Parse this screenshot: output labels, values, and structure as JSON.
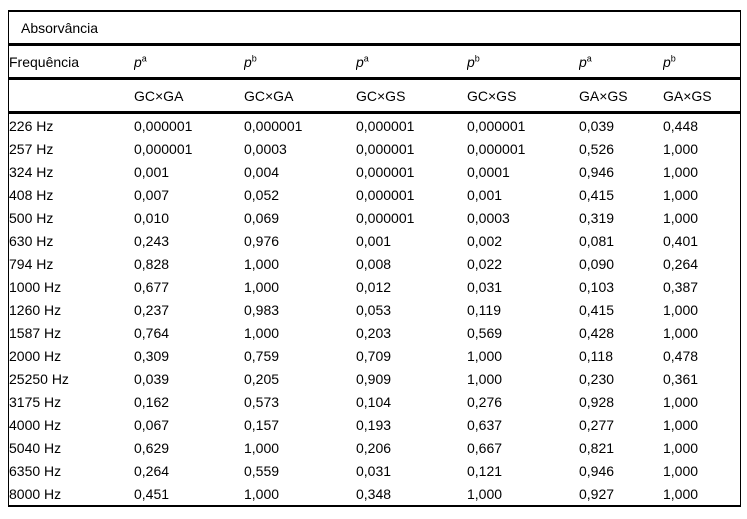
{
  "page": {
    "background": "#ffffff"
  },
  "table": {
    "title": "Absorvância",
    "frequency_header": "Frequência",
    "p_base": "p",
    "p_superscripts": [
      "a",
      "b",
      "a",
      "b",
      "a",
      "b"
    ],
    "group_labels": [
      "GC×GA",
      "GC×GA",
      "GC×GS",
      "GC×GS",
      "GA×GS",
      "GA×GS"
    ],
    "rows": [
      {
        "freq": "226 Hz",
        "values": [
          "0,000001",
          "0,000001",
          "0,000001",
          "0,000001",
          "0,039",
          "0,448"
        ]
      },
      {
        "freq": "257 Hz",
        "values": [
          "0,000001",
          "0,0003",
          "0,000001",
          "0,000001",
          "0,526",
          "1,000"
        ]
      },
      {
        "freq": "324 Hz",
        "values": [
          "0,001",
          "0,004",
          "0,000001",
          "0,0001",
          "0,946",
          "1,000"
        ]
      },
      {
        "freq": "408 Hz",
        "values": [
          "0,007",
          "0,052",
          "0,000001",
          "0,001",
          "0,415",
          "1,000"
        ]
      },
      {
        "freq": "500 Hz",
        "values": [
          "0,010",
          "0,069",
          "0,000001",
          "0,0003",
          "0,319",
          "1,000"
        ]
      },
      {
        "freq": "630 Hz",
        "values": [
          "0,243",
          "0,976",
          "0,001",
          "0,002",
          "0,081",
          "0,401"
        ]
      },
      {
        "freq": "794 Hz",
        "values": [
          "0,828",
          "1,000",
          "0,008",
          "0,022",
          "0,090",
          "0,264"
        ]
      },
      {
        "freq": "1000 Hz",
        "values": [
          "0,677",
          "1,000",
          "0,012",
          "0,031",
          "0,103",
          "0,387"
        ]
      },
      {
        "freq": "1260 Hz",
        "values": [
          "0,237",
          "0,983",
          "0,053",
          "0,119",
          "0,415",
          "1,000"
        ]
      },
      {
        "freq": "1587 Hz",
        "values": [
          "0,764",
          "1,000",
          "0,203",
          "0,569",
          "0,428",
          "1,000"
        ]
      },
      {
        "freq": "2000 Hz",
        "values": [
          "0,309",
          "0,759",
          "0,709",
          "1,000",
          "0,118",
          "0,478"
        ]
      },
      {
        "freq": "25250 Hz",
        "values": [
          "0,039",
          "0,205",
          "0,909",
          "1,000",
          "0,230",
          "0,361"
        ]
      },
      {
        "freq": "3175 Hz",
        "values": [
          "0,162",
          "0,573",
          "0,104",
          "0,276",
          "0,928",
          "1,000"
        ]
      },
      {
        "freq": "4000 Hz",
        "values": [
          "0,067",
          "0,157",
          "0,193",
          "0,637",
          "0,277",
          "1,000"
        ]
      },
      {
        "freq": "5040 Hz",
        "values": [
          "0,629",
          "1,000",
          "0,206",
          "0,667",
          "0,821",
          "1,000"
        ]
      },
      {
        "freq": "6350 Hz",
        "values": [
          "0,264",
          "0,559",
          "0,031",
          "0,121",
          "0,946",
          "1,000"
        ]
      },
      {
        "freq": "8000 Hz",
        "values": [
          "0,451",
          "1,000",
          "0,348",
          "1,000",
          "0,927",
          "1,000"
        ]
      }
    ],
    "colors": {
      "border": "#000000",
      "text": "#000000",
      "background": "#ffffff"
    }
  }
}
